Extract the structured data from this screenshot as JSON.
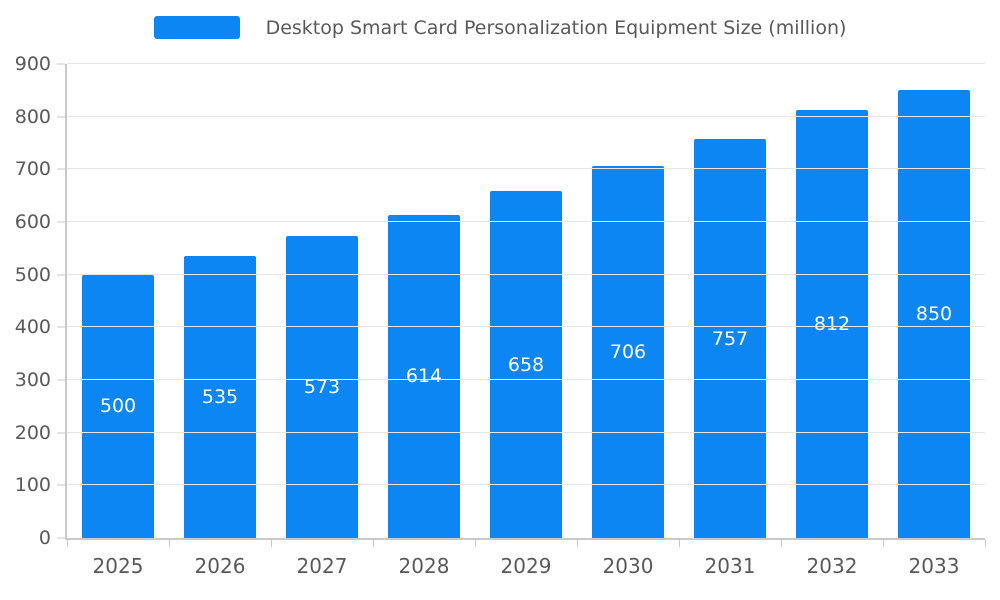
{
  "chart_data": {
    "type": "bar",
    "title": "Desktop Smart Card Personalization Equipment Size (million)",
    "categories": [
      "2025",
      "2026",
      "2027",
      "2028",
      "2029",
      "2030",
      "2031",
      "2032",
      "2033"
    ],
    "values": [
      500,
      535,
      573,
      614,
      658,
      706,
      757,
      812,
      850
    ],
    "xlabel": "",
    "ylabel": "",
    "ylim": [
      0,
      900
    ],
    "yticks": [
      0,
      100,
      200,
      300,
      400,
      500,
      600,
      700,
      800,
      900
    ],
    "grid": true,
    "legend_position": "top",
    "colors": {
      "bar": "#0c86f2",
      "bar_value_label": "#ffffff",
      "axis_text": "#595959",
      "axis_line": "#c9c9c9",
      "gridline": "#e6e6e6"
    }
  }
}
